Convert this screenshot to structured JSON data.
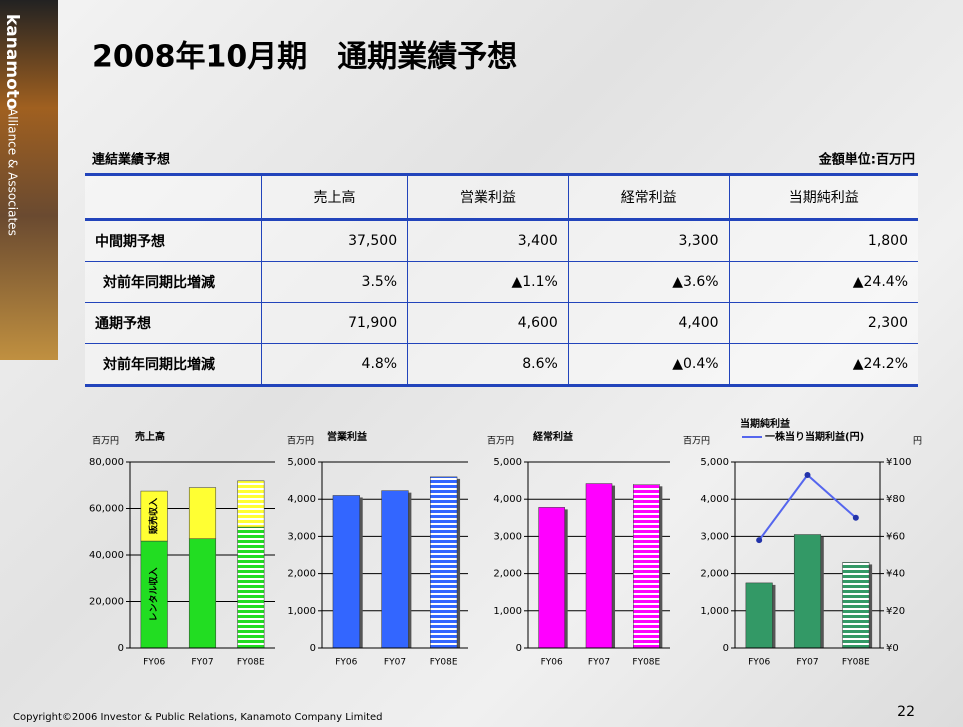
{
  "sidebar": {
    "brand": "kanamoto",
    "tagline": "Alliance & Associates"
  },
  "title": "2008年10月期　通期業績予想",
  "table": {
    "caption": "連結業績予想",
    "unit": "金額単位:百万円",
    "header": [
      "売上高",
      "営業利益",
      "経常利益",
      "当期純利益"
    ],
    "rows": [
      [
        "中間期予想",
        "37,500",
        "3,400",
        "3,300",
        "1,800"
      ],
      [
        "対前年同期比増減",
        "3.5%",
        "▲1.1%",
        "▲3.6%",
        "▲24.4%"
      ],
      [
        "通期予想",
        "71,900",
        "4,600",
        "4,400",
        "2,300"
      ],
      [
        "対前年同期比増減",
        "4.8%",
        "8.6%",
        "▲0.4%",
        "▲24.2%"
      ]
    ]
  },
  "chart_data": [
    {
      "type": "bar",
      "title": "売上高",
      "y_unit": "百万円",
      "stacked": true,
      "grid": true,
      "categories": [
        "FY06",
        "FY07",
        "FY08E"
      ],
      "series": [
        {
          "name": "レンタル収入",
          "color": "#22dd22",
          "values": [
            46000,
            47000,
            52000
          ]
        },
        {
          "name": "販売収入",
          "color": "#ffff33",
          "values": [
            21500,
            22000,
            19900
          ]
        }
      ],
      "ylim": [
        0,
        80000
      ],
      "yticks": [
        0,
        {
          "value": 20000,
          "label": "20,000"
        },
        {
          "value": 40000,
          "label": "40,000"
        },
        {
          "value": 60000,
          "label": "60,000"
        },
        {
          "value": 80000,
          "label": "80,000"
        }
      ]
    },
    {
      "type": "bar",
      "title": "営業利益",
      "y_unit": "百万円",
      "grid": true,
      "categories": [
        "FY06",
        "FY07",
        "FY08E"
      ],
      "values": [
        4100,
        4230,
        4600
      ],
      "color": "#3366ff",
      "ylim": [
        0,
        5000
      ],
      "yticks": [
        0,
        {
          "value": 1000,
          "label": "1,000"
        },
        {
          "value": 2000,
          "label": "2,000"
        },
        {
          "value": 3000,
          "label": "3,000"
        },
        {
          "value": 4000,
          "label": "4,000"
        },
        {
          "value": 5000,
          "label": "5,000"
        }
      ]
    },
    {
      "type": "bar",
      "title": "経常利益",
      "y_unit": "百万円",
      "grid": true,
      "categories": [
        "FY06",
        "FY07",
        "FY08E"
      ],
      "values": [
        3780,
        4420,
        4400
      ],
      "color": "#ff00ff",
      "ylim": [
        0,
        5000
      ],
      "yticks": [
        0,
        {
          "value": 1000,
          "label": "1,000"
        },
        {
          "value": 2000,
          "label": "2,000"
        },
        {
          "value": 3000,
          "label": "3,000"
        },
        {
          "value": 4000,
          "label": "4,000"
        },
        {
          "value": 5000,
          "label": "5,000"
        }
      ]
    },
    {
      "type": "bar",
      "title": "当期純利益",
      "y_unit": "百万円",
      "y2_unit": "円",
      "grid": true,
      "categories": [
        "FY06",
        "FY07",
        "FY08E"
      ],
      "values": [
        1750,
        3050,
        2300
      ],
      "color": "#339966",
      "series": [
        {
          "name": "一株当り当期利益(円)",
          "color": "#5566ee",
          "type": "line",
          "axis": "y2",
          "values": [
            58,
            93,
            70
          ]
        }
      ],
      "ylim": [
        0,
        5000
      ],
      "yticks": [
        0,
        {
          "value": 1000,
          "label": "1,000"
        },
        {
          "value": 2000,
          "label": "2,000"
        },
        {
          "value": 3000,
          "label": "3,000"
        },
        {
          "value": 4000,
          "label": "4,000"
        },
        {
          "value": 5000,
          "label": "5,000"
        }
      ],
      "y2lim": [
        0,
        100
      ],
      "y2ticks": [
        {
          "value": 0,
          "label": "¥0"
        },
        {
          "value": 20,
          "label": "¥20"
        },
        {
          "value": 40,
          "label": "¥40"
        },
        {
          "value": 60,
          "label": "¥60"
        },
        {
          "value": 80,
          "label": "¥80"
        },
        {
          "value": 100,
          "label": "¥100"
        }
      ]
    }
  ],
  "footer": {
    "copyright": "Copyright©2006 Investor & Public Relations, Kanamoto Company Limited",
    "page": "22"
  }
}
